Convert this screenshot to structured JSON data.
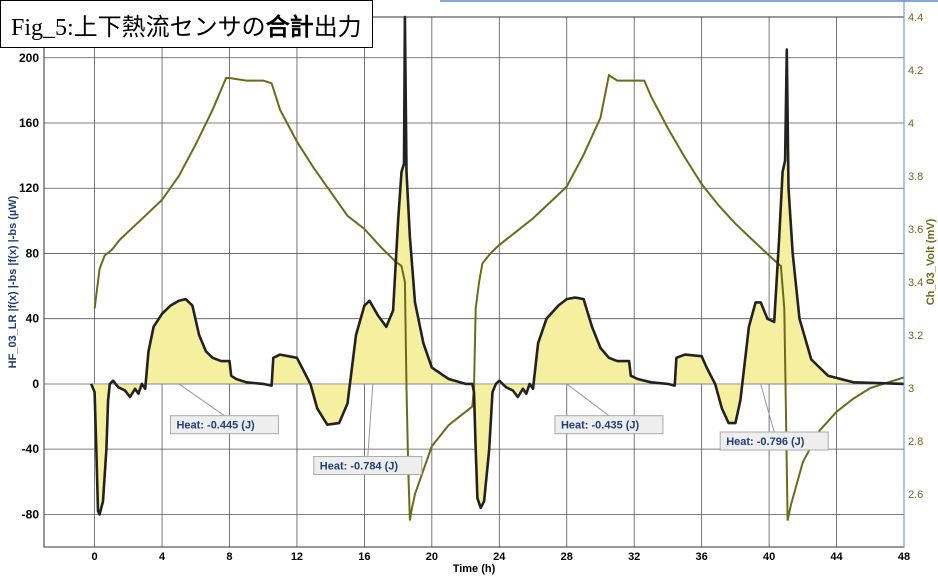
{
  "title": {
    "part1": "Fig_5:上下熱流センサの",
    "part2": "合計",
    "part3": "出力"
  },
  "colors": {
    "heat_flow": "#222222",
    "fill": "#f5f0a0",
    "temperature": "#6b6b1a",
    "left_axis": "#1f3f7a",
    "right_axis": "#6b6b1a",
    "grid": "#555555"
  },
  "chart_data": {
    "type": "line",
    "xlabel": "Time (h)",
    "ylabel_left": "HF_03_LR |f(x) |-bs |f(x) |-bs (µW)",
    "ylabel_right": "Ch_03_Volt (mV)",
    "xlim": [
      -3,
      48
    ],
    "ylim_left": [
      -100,
      225
    ],
    "ylim_right": [
      2.4,
      4.4
    ],
    "x_ticks": [
      0,
      4,
      8,
      12,
      16,
      20,
      24,
      28,
      32,
      36,
      40,
      44,
      48
    ],
    "y_ticks_left": [
      -80,
      -40,
      0,
      40,
      80,
      120,
      160,
      200
    ],
    "y_ticks_right": [
      2.6,
      2.8,
      3,
      3.2,
      3.4,
      3.6,
      3.8,
      4,
      4.2,
      4.4
    ],
    "grid": true,
    "series": [
      {
        "axis": "left",
        "points": [
          [
            -0.2,
            0
          ],
          [
            0,
            -5
          ],
          [
            0.1,
            -40
          ],
          [
            0.2,
            -78
          ],
          [
            0.3,
            -80
          ],
          [
            0.5,
            -72
          ],
          [
            0.7,
            -40
          ],
          [
            0.8,
            -10
          ],
          [
            0.9,
            0
          ],
          [
            1.1,
            2
          ],
          [
            1.4,
            -2
          ],
          [
            1.8,
            -4
          ],
          [
            2.1,
            -8
          ],
          [
            2.4,
            -3
          ],
          [
            2.6,
            -6
          ],
          [
            2.8,
            0
          ],
          [
            3.0,
            -3
          ],
          [
            3.2,
            20
          ],
          [
            3.5,
            35
          ],
          [
            4,
            43
          ],
          [
            4.5,
            48
          ],
          [
            5,
            51
          ],
          [
            5.4,
            52
          ],
          [
            5.8,
            48
          ],
          [
            6.2,
            30
          ],
          [
            6.6,
            20
          ],
          [
            7,
            16
          ],
          [
            7.5,
            14
          ],
          [
            8,
            14
          ],
          [
            8.1,
            5
          ],
          [
            8.4,
            3
          ],
          [
            9,
            1
          ],
          [
            10,
            0
          ],
          [
            10.5,
            -1
          ],
          [
            10.6,
            16
          ],
          [
            11,
            18
          ],
          [
            12,
            16
          ],
          [
            12.3,
            10
          ],
          [
            12.8,
            0
          ],
          [
            13.2,
            -15
          ],
          [
            13.8,
            -25
          ],
          [
            14.5,
            -24
          ],
          [
            15,
            -12
          ],
          [
            15.5,
            30
          ],
          [
            16,
            48
          ],
          [
            16.3,
            51
          ],
          [
            16.8,
            42
          ],
          [
            17.3,
            35
          ],
          [
            17.7,
            45
          ],
          [
            18,
            100
          ],
          [
            18.2,
            130
          ],
          [
            18.35,
            135
          ],
          [
            18.4,
            225
          ],
          [
            18.5,
            130
          ],
          [
            18.7,
            90
          ],
          [
            19,
            50
          ],
          [
            19.5,
            25
          ],
          [
            20,
            10
          ],
          [
            21,
            3
          ],
          [
            22,
            0
          ],
          [
            22.4,
            0
          ],
          [
            22.5,
            -5
          ],
          [
            22.6,
            -40
          ],
          [
            22.7,
            -70
          ],
          [
            22.9,
            -76
          ],
          [
            23.1,
            -72
          ],
          [
            23.4,
            -40
          ],
          [
            23.6,
            -5
          ],
          [
            23.8,
            0
          ],
          [
            24,
            2
          ],
          [
            24.4,
            -2
          ],
          [
            24.8,
            -4
          ],
          [
            25.1,
            -8
          ],
          [
            25.4,
            -3
          ],
          [
            25.6,
            -6
          ],
          [
            25.8,
            0
          ],
          [
            26,
            -3
          ],
          [
            26.3,
            25
          ],
          [
            26.8,
            40
          ],
          [
            27.5,
            48
          ],
          [
            28,
            52
          ],
          [
            28.5,
            53
          ],
          [
            29,
            52
          ],
          [
            29.5,
            35
          ],
          [
            30,
            22
          ],
          [
            30.5,
            16
          ],
          [
            31,
            14
          ],
          [
            31.7,
            14
          ],
          [
            31.8,
            5
          ],
          [
            32.2,
            3
          ],
          [
            33,
            1
          ],
          [
            34,
            0
          ],
          [
            34.4,
            -1
          ],
          [
            34.5,
            16
          ],
          [
            35,
            18
          ],
          [
            36,
            17
          ],
          [
            36.3,
            10
          ],
          [
            36.8,
            0
          ],
          [
            37.2,
            -15
          ],
          [
            37.6,
            -24
          ],
          [
            38,
            -24
          ],
          [
            38.3,
            -10
          ],
          [
            38.8,
            35
          ],
          [
            39.2,
            50
          ],
          [
            39.5,
            50
          ],
          [
            39.9,
            40
          ],
          [
            40.3,
            38
          ],
          [
            40.6,
            90
          ],
          [
            40.8,
            130
          ],
          [
            40.95,
            137
          ],
          [
            41.05,
            205
          ],
          [
            41.15,
            120
          ],
          [
            41.4,
            80
          ],
          [
            41.8,
            40
          ],
          [
            42.5,
            15
          ],
          [
            43.5,
            5
          ],
          [
            45,
            1
          ],
          [
            48,
            0
          ]
        ]
      },
      {
        "axis": "right",
        "points": [
          [
            0,
            3.3
          ],
          [
            0.3,
            3.45
          ],
          [
            0.6,
            3.5
          ],
          [
            1,
            3.52
          ],
          [
            1.5,
            3.56
          ],
          [
            2,
            3.59
          ],
          [
            3,
            3.65
          ],
          [
            4,
            3.71
          ],
          [
            5,
            3.8
          ],
          [
            6,
            3.92
          ],
          [
            7,
            4.05
          ],
          [
            7.8,
            4.17
          ],
          [
            8,
            4.17
          ],
          [
            9,
            4.16
          ],
          [
            10,
            4.16
          ],
          [
            10.5,
            4.15
          ],
          [
            11,
            4.05
          ],
          [
            12,
            3.93
          ],
          [
            13,
            3.83
          ],
          [
            14,
            3.74
          ],
          [
            15,
            3.65
          ],
          [
            16,
            3.6
          ],
          [
            17,
            3.53
          ],
          [
            17.8,
            3.48
          ],
          [
            18.2,
            3.46
          ],
          [
            18.4,
            3.4
          ],
          [
            18.5,
            3.0
          ],
          [
            18.6,
            2.7
          ],
          [
            18.7,
            2.5
          ],
          [
            18.8,
            2.54
          ],
          [
            19,
            2.6
          ],
          [
            20,
            2.78
          ],
          [
            21,
            2.86
          ],
          [
            22,
            2.91
          ],
          [
            22.4,
            2.93
          ],
          [
            22.5,
            3.0
          ],
          [
            22.6,
            3.3
          ],
          [
            22.8,
            3.4
          ],
          [
            23,
            3.47
          ],
          [
            23.5,
            3.51
          ],
          [
            24,
            3.54
          ],
          [
            25,
            3.59
          ],
          [
            26,
            3.64
          ],
          [
            27,
            3.7
          ],
          [
            28,
            3.76
          ],
          [
            29,
            3.88
          ],
          [
            30,
            4.02
          ],
          [
            30.5,
            4.18
          ],
          [
            31,
            4.16
          ],
          [
            32,
            4.16
          ],
          [
            32.6,
            4.16
          ],
          [
            33,
            4.1
          ],
          [
            34,
            3.98
          ],
          [
            35,
            3.87
          ],
          [
            36,
            3.77
          ],
          [
            37,
            3.69
          ],
          [
            38,
            3.62
          ],
          [
            39,
            3.56
          ],
          [
            40,
            3.5
          ],
          [
            40.7,
            3.46
          ],
          [
            40.9,
            3.3
          ],
          [
            41.0,
            2.9
          ],
          [
            41.1,
            2.5
          ],
          [
            41.3,
            2.56
          ],
          [
            42,
            2.72
          ],
          [
            43,
            2.84
          ],
          [
            44,
            2.91
          ],
          [
            45,
            2.96
          ],
          [
            46,
            3.0
          ],
          [
            47,
            3.02
          ],
          [
            48,
            3.04
          ]
        ]
      }
    ],
    "annotations": [
      {
        "text": "Heat: -0.445 (J)",
        "x": 4.5,
        "y": -25,
        "point_x": 5,
        "point_y": 0
      },
      {
        "text": "Heat: -0.784 (J)",
        "x": 13.0,
        "y": -50,
        "point_x": 16.5,
        "point_y": 0
      },
      {
        "text": "Heat: -0.435 (J)",
        "x": 27.3,
        "y": -25,
        "point_x": 28,
        "point_y": 0
      },
      {
        "text": "Heat: -0.796 (J)",
        "x": 37.1,
        "y": -35,
        "point_x": 39.5,
        "point_y": 0
      }
    ]
  }
}
